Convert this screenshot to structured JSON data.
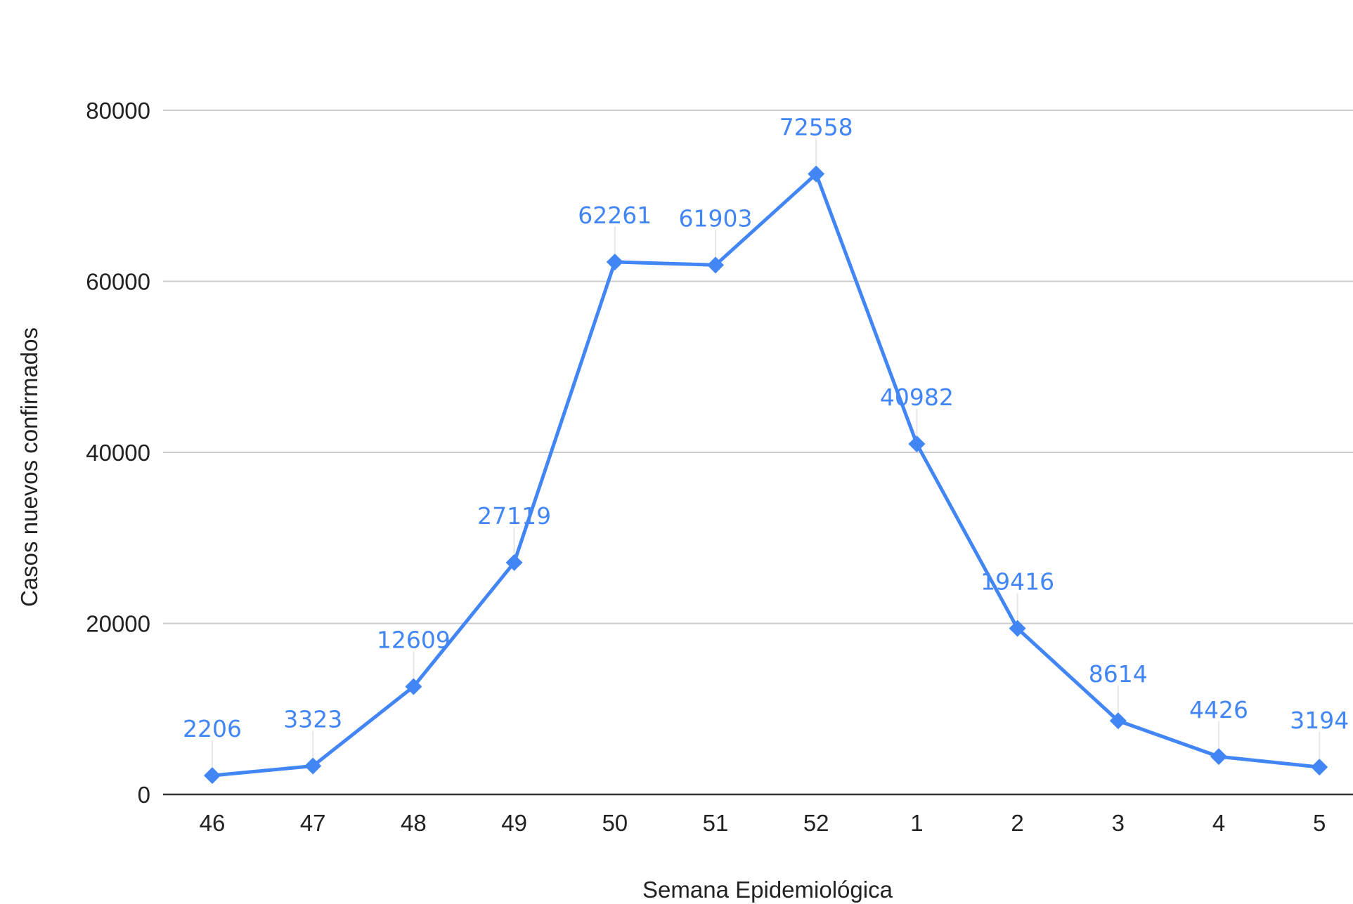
{
  "chart_data": {
    "type": "line",
    "title": "",
    "xlabel": "Semana Epidemiológica",
    "ylabel": "Casos nuevos confirmados",
    "categories": [
      "46",
      "47",
      "48",
      "49",
      "50",
      "51",
      "52",
      "1",
      "2",
      "3",
      "4",
      "5"
    ],
    "series": [
      {
        "values": [
          2206,
          3323,
          12609,
          27119,
          62261,
          61903,
          72558,
          40982,
          19416,
          8614,
          4426,
          3194
        ],
        "color": "#4285f4",
        "marker": "diamond",
        "data_labels": true
      }
    ],
    "ylim": [
      0,
      80000
    ],
    "yticks": [
      "0",
      "20000",
      "40000",
      "60000",
      "80000"
    ],
    "grid": true,
    "legend": "none"
  },
  "colors": {
    "series": "#4285f4",
    "grid": "#cccccc",
    "baseline": "#333333",
    "text": "#222222"
  }
}
